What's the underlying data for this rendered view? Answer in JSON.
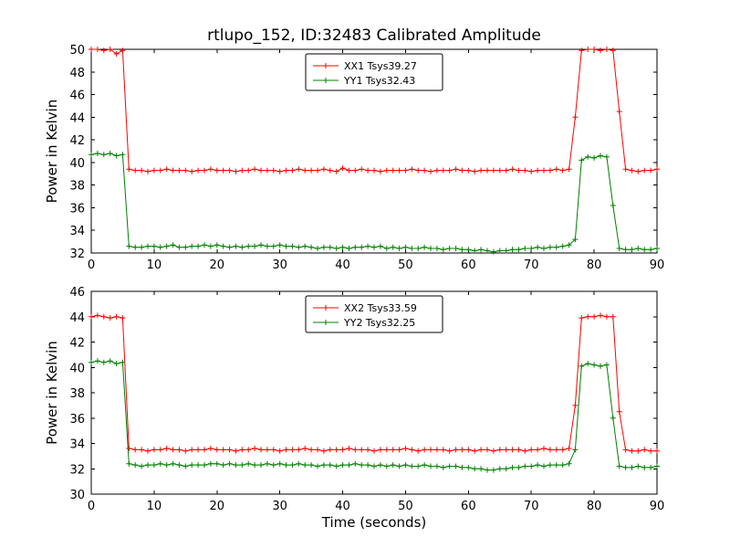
{
  "figure": {
    "background": "#ffffff",
    "frame_color": "#000000"
  },
  "chart_data": [
    {
      "type": "line",
      "title": "rtlupo_152, ID:32483 Calibrated Amplitude",
      "xlabel": "",
      "ylabel": "Power in Kelvin",
      "xlim": [
        0,
        90
      ],
      "ylim": [
        32,
        50
      ],
      "xticks": [
        0,
        10,
        20,
        30,
        40,
        50,
        60,
        70,
        80,
        90
      ],
      "yticks": [
        32,
        34,
        36,
        38,
        40,
        42,
        44,
        46,
        48,
        50
      ],
      "grid": false,
      "legend_position": "upper center",
      "x": [
        0,
        1,
        2,
        3,
        4,
        5,
        6,
        7,
        8,
        9,
        10,
        11,
        12,
        13,
        14,
        15,
        16,
        17,
        18,
        19,
        20,
        21,
        22,
        23,
        24,
        25,
        26,
        27,
        28,
        29,
        30,
        31,
        32,
        33,
        34,
        35,
        36,
        37,
        38,
        39,
        40,
        41,
        42,
        43,
        44,
        45,
        46,
        47,
        48,
        49,
        50,
        51,
        52,
        53,
        54,
        55,
        56,
        57,
        58,
        59,
        60,
        61,
        62,
        63,
        64,
        65,
        66,
        67,
        68,
        69,
        70,
        71,
        72,
        73,
        74,
        75,
        76,
        77,
        78,
        79,
        80,
        81,
        82,
        83,
        84,
        85,
        86,
        87,
        88,
        89,
        90
      ],
      "series": [
        {
          "name": "XX1 Tsys39.27",
          "color": "#ff0000",
          "marker": "+",
          "values": [
            50,
            50,
            49.9,
            50,
            49.6,
            49.9,
            39.4,
            39.3,
            39.3,
            39.2,
            39.3,
            39.3,
            39.4,
            39.3,
            39.3,
            39.3,
            39.2,
            39.3,
            39.3,
            39.4,
            39.3,
            39.3,
            39.3,
            39.2,
            39.3,
            39.3,
            39.4,
            39.3,
            39.3,
            39.3,
            39.2,
            39.3,
            39.3,
            39.4,
            39.3,
            39.3,
            39.3,
            39.4,
            39.3,
            39.2,
            39.5,
            39.3,
            39.3,
            39.4,
            39.3,
            39.3,
            39.2,
            39.3,
            39.3,
            39.3,
            39.3,
            39.4,
            39.3,
            39.3,
            39.2,
            39.3,
            39.3,
            39.3,
            39.4,
            39.3,
            39.3,
            39.2,
            39.3,
            39.3,
            39.3,
            39.3,
            39.3,
            39.4,
            39.3,
            39.3,
            39.2,
            39.3,
            39.3,
            39.3,
            39.4,
            39.3,
            39.4,
            44,
            49.9,
            50,
            50,
            49.9,
            50,
            49.9,
            44.5,
            39.4,
            39.3,
            39.2,
            39.3,
            39.3,
            39.4
          ]
        },
        {
          "name": "YY1 Tsys32.43",
          "color": "#008000",
          "marker": "+",
          "values": [
            40.7,
            40.8,
            40.7,
            40.8,
            40.6,
            40.7,
            32.6,
            32.5,
            32.5,
            32.6,
            32.6,
            32.5,
            32.6,
            32.7,
            32.5,
            32.5,
            32.6,
            32.6,
            32.7,
            32.6,
            32.7,
            32.6,
            32.5,
            32.6,
            32.5,
            32.6,
            32.6,
            32.7,
            32.6,
            32.6,
            32.7,
            32.6,
            32.6,
            32.5,
            32.6,
            32.5,
            32.4,
            32.5,
            32.5,
            32.4,
            32.5,
            32.4,
            32.5,
            32.5,
            32.6,
            32.5,
            32.6,
            32.4,
            32.5,
            32.4,
            32.5,
            32.4,
            32.4,
            32.5,
            32.4,
            32.4,
            32.3,
            32.4,
            32.4,
            32.3,
            32.3,
            32.2,
            32.3,
            32.2,
            32.1,
            32.2,
            32.2,
            32.3,
            32.3,
            32.4,
            32.4,
            32.5,
            32.4,
            32.5,
            32.5,
            32.6,
            32.7,
            33.2,
            40.2,
            40.5,
            40.4,
            40.6,
            40.5,
            36.2,
            32.4,
            32.3,
            32.3,
            32.4,
            32.3,
            32.3,
            32.4
          ]
        }
      ]
    },
    {
      "type": "line",
      "title": "",
      "xlabel": "Time (seconds)",
      "ylabel": "Power in Kelvin",
      "xlim": [
        0,
        90
      ],
      "ylim": [
        30,
        46
      ],
      "xticks": [
        0,
        10,
        20,
        30,
        40,
        50,
        60,
        70,
        80,
        90
      ],
      "yticks": [
        30,
        32,
        34,
        36,
        38,
        40,
        42,
        44,
        46
      ],
      "grid": false,
      "legend_position": "upper center",
      "x": [
        0,
        1,
        2,
        3,
        4,
        5,
        6,
        7,
        8,
        9,
        10,
        11,
        12,
        13,
        14,
        15,
        16,
        17,
        18,
        19,
        20,
        21,
        22,
        23,
        24,
        25,
        26,
        27,
        28,
        29,
        30,
        31,
        32,
        33,
        34,
        35,
        36,
        37,
        38,
        39,
        40,
        41,
        42,
        43,
        44,
        45,
        46,
        47,
        48,
        49,
        50,
        51,
        52,
        53,
        54,
        55,
        56,
        57,
        58,
        59,
        60,
        61,
        62,
        63,
        64,
        65,
        66,
        67,
        68,
        69,
        70,
        71,
        72,
        73,
        74,
        75,
        76,
        77,
        78,
        79,
        80,
        81,
        82,
        83,
        84,
        85,
        86,
        87,
        88,
        89,
        90
      ],
      "series": [
        {
          "name": "XX2 Tsys33.59",
          "color": "#ff0000",
          "marker": "+",
          "values": [
            44,
            44.1,
            44,
            43.9,
            44,
            43.9,
            33.6,
            33.5,
            33.5,
            33.4,
            33.5,
            33.5,
            33.6,
            33.5,
            33.5,
            33.4,
            33.5,
            33.5,
            33.5,
            33.6,
            33.5,
            33.5,
            33.5,
            33.4,
            33.5,
            33.5,
            33.6,
            33.5,
            33.5,
            33.5,
            33.4,
            33.5,
            33.5,
            33.5,
            33.6,
            33.5,
            33.5,
            33.4,
            33.5,
            33.5,
            33.5,
            33.6,
            33.5,
            33.5,
            33.5,
            33.4,
            33.5,
            33.5,
            33.5,
            33.5,
            33.6,
            33.5,
            33.4,
            33.5,
            33.5,
            33.5,
            33.5,
            33.4,
            33.5,
            33.5,
            33.5,
            33.4,
            33.5,
            33.5,
            33.4,
            33.5,
            33.5,
            33.5,
            33.5,
            33.4,
            33.5,
            33.5,
            33.6,
            33.5,
            33.5,
            33.5,
            33.6,
            37,
            43.9,
            44,
            44,
            44.1,
            44,
            44,
            36.5,
            33.5,
            33.4,
            33.4,
            33.5,
            33.4,
            33.4
          ]
        },
        {
          "name": "YY2 Tsys32.25",
          "color": "#008000",
          "marker": "+",
          "values": [
            40.4,
            40.5,
            40.4,
            40.5,
            40.3,
            40.4,
            32.4,
            32.3,
            32.2,
            32.3,
            32.3,
            32.4,
            32.3,
            32.4,
            32.3,
            32.2,
            32.3,
            32.3,
            32.3,
            32.4,
            32.4,
            32.3,
            32.4,
            32.3,
            32.3,
            32.4,
            32.3,
            32.3,
            32.4,
            32.3,
            32.4,
            32.3,
            32.3,
            32.4,
            32.3,
            32.3,
            32.2,
            32.3,
            32.3,
            32.2,
            32.3,
            32.3,
            32.4,
            32.3,
            32.3,
            32.2,
            32.3,
            32.2,
            32.3,
            32.2,
            32.3,
            32.2,
            32.2,
            32.3,
            32.2,
            32.2,
            32.1,
            32.2,
            32.2,
            32.1,
            32.1,
            32,
            32,
            31.9,
            31.9,
            32,
            32,
            32.1,
            32.1,
            32.2,
            32.2,
            32.3,
            32.2,
            32.3,
            32.3,
            32.3,
            32.4,
            33.5,
            40.1,
            40.3,
            40.2,
            40.1,
            40.2,
            36,
            32.2,
            32.1,
            32.1,
            32.2,
            32.1,
            32.1,
            32.2
          ]
        }
      ]
    }
  ]
}
